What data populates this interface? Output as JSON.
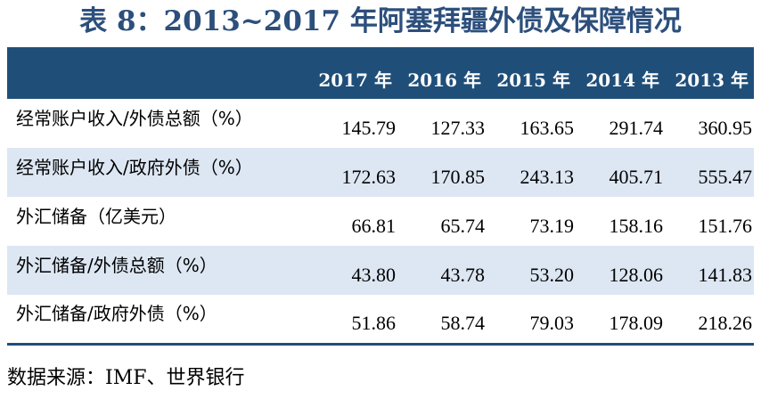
{
  "title": "表 8：2013~2017 年阿塞拜疆外债及保障情况",
  "header": {
    "columns": [
      "",
      "2017 年",
      "2016 年",
      "2015 年",
      "2014 年",
      "2013 年"
    ]
  },
  "rows": [
    {
      "label": "经常账户收入/外债总额（%）",
      "values": [
        "145.79",
        "127.33",
        "163.65",
        "291.74",
        "360.95"
      ]
    },
    {
      "label": "经常账户收入/政府外债（%）",
      "values": [
        "172.63",
        "170.85",
        "243.13",
        "405.71",
        "555.47"
      ]
    },
    {
      "label": "外汇储备（亿美元）",
      "values": [
        "66.81",
        "65.74",
        "73.19",
        "158.16",
        "151.76"
      ]
    },
    {
      "label": "外汇储备/外债总额（%）",
      "values": [
        "43.80",
        "43.78",
        "53.20",
        "128.06",
        "141.83"
      ]
    },
    {
      "label": "外汇储备/政府外债（%）",
      "values": [
        "51.86",
        "58.74",
        "79.03",
        "178.09",
        "218.26"
      ]
    }
  ],
  "source": "数据来源：IMF、世界银行",
  "colors": {
    "title": "#2c4f7c",
    "header_bg": "#1f4e79",
    "stripe": "#dde7f3"
  }
}
